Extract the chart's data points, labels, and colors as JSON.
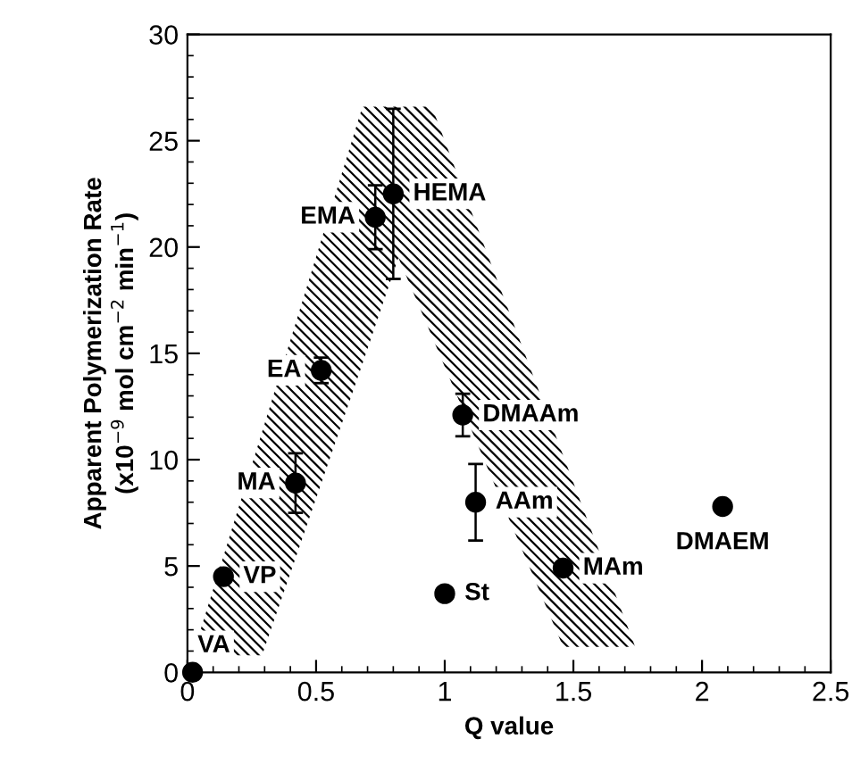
{
  "chart_data": {
    "type": "scatter",
    "xlabel": "Q value",
    "ylabel": "Apparent Polymerization Rate\n(x10$^{−9}$ mol cm$^{−2}$ min$^{−1}$)",
    "xlim": [
      0,
      2.5
    ],
    "xticks": [
      0,
      0.5,
      1,
      1.5,
      2,
      2.5
    ],
    "ylim": [
      0,
      30
    ],
    "yticks": [
      0,
      5,
      10,
      15,
      20,
      25,
      30
    ],
    "grid": false,
    "series": [
      {
        "type": "line",
        "color": "#000000",
        "x": [
          0.02,
          0.29,
          0.68,
          0.82,
          0.95,
          1.46,
          1.74
        ],
        "values": [
          null,
          null,
          null,
          null,
          null,
          null,
          null
        ],
        "lower": [
          0.8,
          0.8,
          14.5,
          19.5,
          15.8,
          1.2,
          1.2
        ],
        "upper": [
          0.8,
          11.3,
          26.6,
          26.6,
          26.6,
          10.2,
          1.2
        ]
      },
      {
        "type": "scatter",
        "color": "#000000",
        "marker": "circle",
        "x": [
          0.02,
          0.14,
          0.42,
          0.52,
          0.73,
          0.8,
          1.07,
          1.12,
          1.0,
          1.46,
          2.08
        ],
        "values": [
          0,
          4.5,
          8.9,
          14.2,
          21.4,
          22.5,
          12.1,
          8.0,
          3.7,
          4.9,
          7.8
        ],
        "errors": [
          null,
          null,
          1.4,
          0.6,
          1.5,
          4.0,
          1.0,
          1.8,
          null,
          null,
          null
        ]
      }
    ],
    "annotations": [
      {
        "text": "VA",
        "x": 0.02,
        "y": 0
      },
      {
        "text": "VP",
        "x": 0.14,
        "y": 4.5
      },
      {
        "text": "MA",
        "x": 0.42,
        "y": 8.9
      },
      {
        "text": "EA",
        "x": 0.52,
        "y": 14.2
      },
      {
        "text": "EMA",
        "x": 0.73,
        "y": 21.4
      },
      {
        "text": "HEMA",
        "x": 0.8,
        "y": 22.5
      },
      {
        "text": "DMAAm",
        "x": 1.07,
        "y": 12.1
      },
      {
        "text": "AAm",
        "x": 1.12,
        "y": 8.0
      },
      {
        "text": "St",
        "x": 1.0,
        "y": 3.7
      },
      {
        "text": "MAm",
        "x": 1.46,
        "y": 4.9
      },
      {
        "text": "DMAEM",
        "x": 2.08,
        "y": 7.8
      }
    ]
  }
}
